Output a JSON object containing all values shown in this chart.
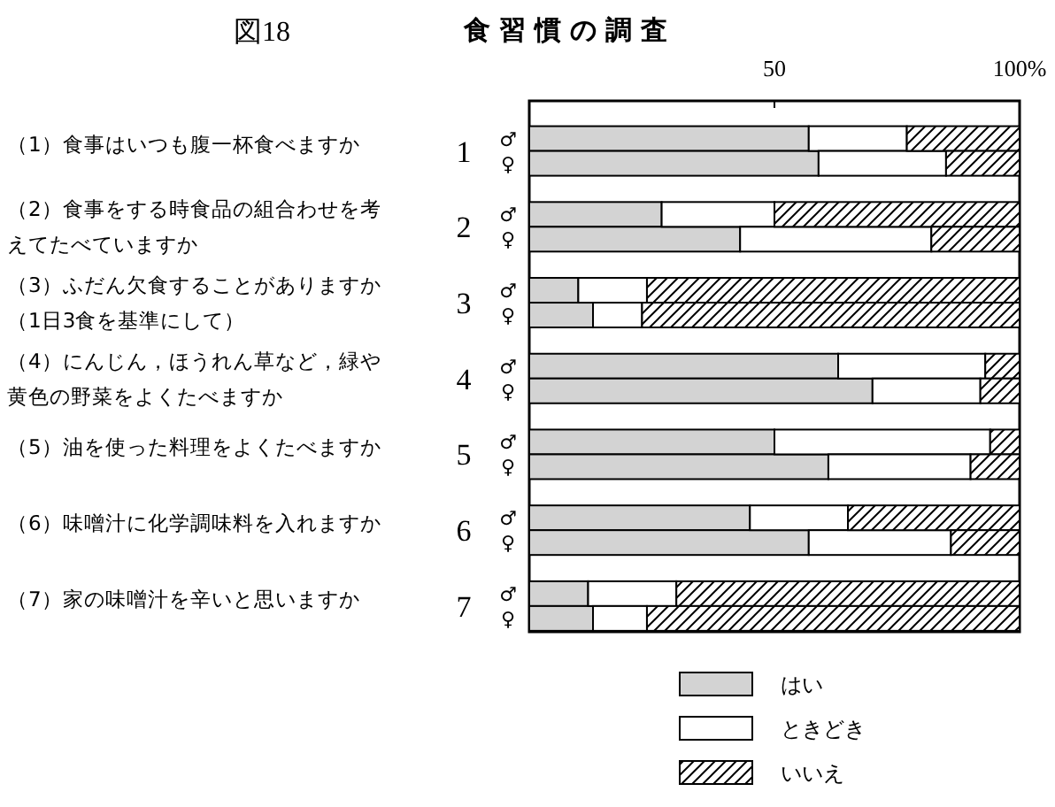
{
  "chart_data": {
    "type": "bar",
    "orientation": "horizontal",
    "stacked": true,
    "title": "食習慣の調査",
    "categories": [
      "♂",
      "♀",
      "♂",
      "♀",
      "♂",
      "♀",
      "♂",
      "♀",
      "♂",
      "♀",
      "♂",
      "♀",
      "♂",
      "♀"
    ],
    "series": [
      {
        "name": "はい",
        "color": "#d3d3d3",
        "values": [
          57,
          59,
          27,
          43,
          10,
          13,
          63,
          70,
          50,
          61,
          45,
          57,
          12,
          13
        ]
      },
      {
        "name": "ときどき",
        "color": "#ffffff",
        "values": [
          20,
          26,
          23,
          39,
          14,
          10,
          30,
          22,
          44,
          29,
          20,
          29,
          18,
          11
        ]
      },
      {
        "name": "いいえ",
        "color": "#000000",
        "values": [
          23,
          15,
          50,
          18,
          76,
          77,
          7,
          8,
          6,
          10,
          35,
          14,
          70,
          76
        ]
      }
    ],
    "xlim": [
      0,
      100
    ],
    "xticks": [
      50,
      {
        "value": 100,
        "label": "100%"
      }
    ],
    "legend": "bottom",
    "annotations": [
      "図18",
      "（1）食事はいつも腹一杯食べますか",
      "（2）食事をする時食品の組合わせを考えてたべていますか",
      "（3）ふだん欠食することがありますか（1日3食を基準にして）",
      "（4）にんじん，ほうれん草など，緑や黄色の野菜をよくたべますか",
      "（5）油を使った料理をよくたべますか",
      "（6）味噌汁に化学調味料を入れますか",
      "（7）家の味噌汁を辛いと思いますか",
      "1",
      "2",
      "3",
      "4",
      "5",
      "6",
      "7"
    ]
  }
}
